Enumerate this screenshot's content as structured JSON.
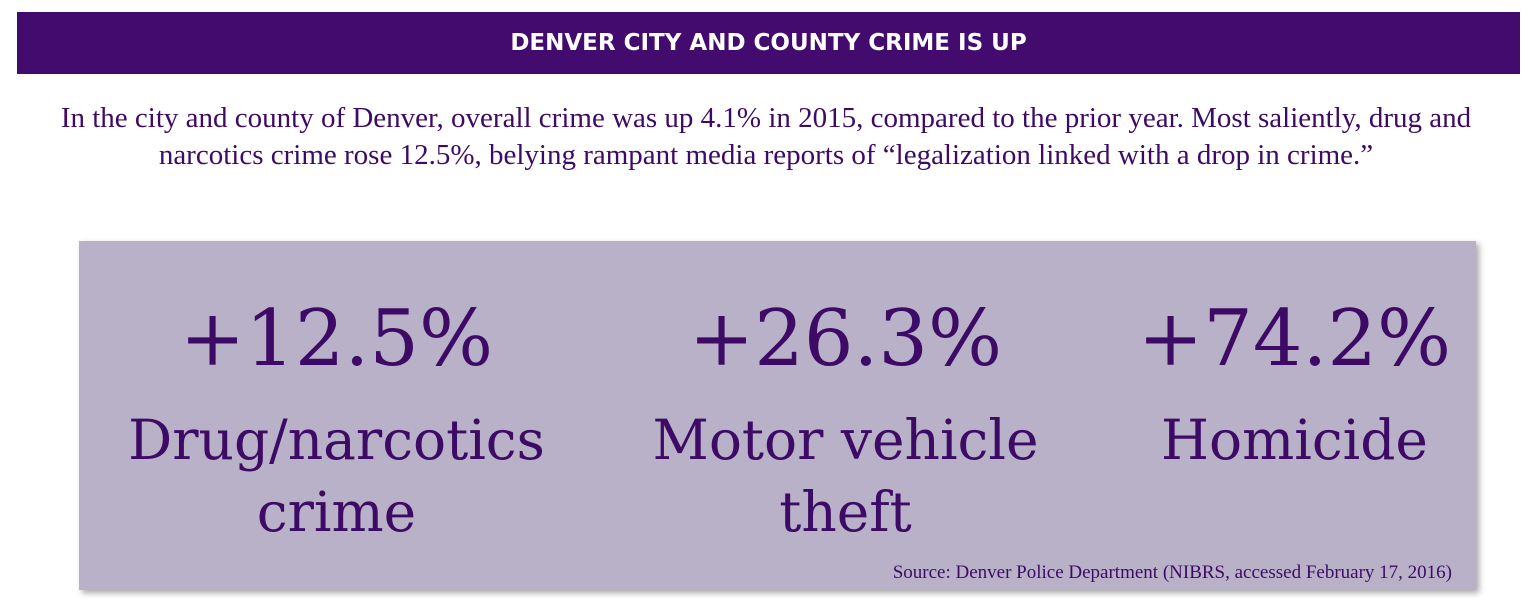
{
  "banner": {
    "title": "DENVER CITY AND COUNTY CRIME IS UP"
  },
  "intro": {
    "text": "In the city and county of Denver, overall crime was up 4.1% in 2015, compared to the prior year.  Most saliently, drug and narcotics crime rose 12.5%, belying rampant media reports of “legalization linked with a drop in crime.”"
  },
  "stats": [
    {
      "value": "+12.5%",
      "label": "Drug/narcotics crime"
    },
    {
      "value": "+26.3%",
      "label": "Motor vehicle theft"
    },
    {
      "value": "+74.2%",
      "label": "Homicide"
    }
  ],
  "source": {
    "text": "Source: Denver Police Department (NIBRS, accessed  February 17, 2016)"
  },
  "colors": {
    "banner_bg": "#420b6d",
    "text_purple": "#3d0a66",
    "panel_bg": "#b8b1c7"
  }
}
